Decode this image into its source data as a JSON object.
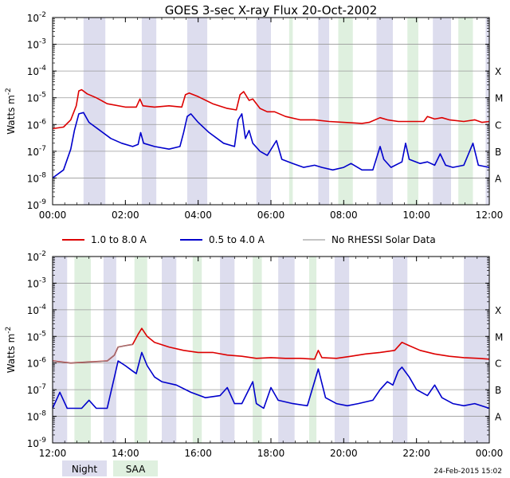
{
  "title": "GOES 3-sec X-ray Flux   20-Oct-2002",
  "footer_date": "24-Feb-2015 15:02",
  "key": {
    "night": "Night",
    "saa": "SAA"
  },
  "colors": {
    "long_channel": "#dd0000",
    "short_channel": "#0000cc",
    "no_rhessi": "#888888",
    "night_band": "#ddddee",
    "saa_band": "#dff0df"
  },
  "chart_data": [
    {
      "type": "line",
      "panel": "top",
      "ylabel": "Watts m",
      "ylabel_superscript": "-2",
      "y_scale": "log",
      "ylim": [
        1e-09,
        0.01
      ],
      "y_ticks": [
        {
          "base": "10",
          "exp": "-9"
        },
        {
          "base": "10",
          "exp": "-8"
        },
        {
          "base": "10",
          "exp": "-7"
        },
        {
          "base": "10",
          "exp": "-6"
        },
        {
          "base": "10",
          "exp": "-5"
        },
        {
          "base": "10",
          "exp": "-4"
        },
        {
          "base": "10",
          "exp": "-3"
        },
        {
          "base": "10",
          "exp": "-2"
        }
      ],
      "flare_classes": [
        {
          "label": "A",
          "flux": 1e-08
        },
        {
          "label": "B",
          "flux": 1e-07
        },
        {
          "label": "C",
          "flux": 1e-06
        },
        {
          "label": "M",
          "flux": 1e-05
        },
        {
          "label": "X",
          "flux": 0.0001
        }
      ],
      "xlim": [
        0,
        12
      ],
      "x_ticks": [
        "00:00",
        "02:00",
        "04:00",
        "06:00",
        "08:00",
        "10:00",
        "12:00"
      ],
      "grid": true,
      "night": [
        [
          0.85,
          1.45
        ],
        [
          2.45,
          2.85
        ],
        [
          3.7,
          4.25
        ],
        [
          5.6,
          6.0
        ],
        [
          7.3,
          7.6
        ],
        [
          8.9,
          9.35
        ],
        [
          10.45,
          10.95
        ],
        [
          11.9,
          12.0
        ]
      ],
      "saa": [
        [
          6.5,
          6.6
        ],
        [
          7.85,
          8.25
        ],
        [
          9.75,
          10.05
        ],
        [
          11.15,
          11.55
        ]
      ],
      "series": [
        {
          "name": "1.0 to 8.0 A",
          "channel": "long",
          "points": [
            [
              0,
              7e-07
            ],
            [
              0.3,
              8e-07
            ],
            [
              0.5,
              1.5e-06
            ],
            [
              0.65,
              5e-06
            ],
            [
              0.72,
              1.8e-05
            ],
            [
              0.8,
              2e-05
            ],
            [
              0.95,
              1.4e-05
            ],
            [
              1.2,
              1e-05
            ],
            [
              1.5,
              6e-06
            ],
            [
              2.0,
              4.5e-06
            ],
            [
              2.3,
              4.5e-06
            ],
            [
              2.4,
              9e-06
            ],
            [
              2.48,
              5e-06
            ],
            [
              2.8,
              4.5e-06
            ],
            [
              3.2,
              5e-06
            ],
            [
              3.55,
              4.5e-06
            ],
            [
              3.65,
              1.3e-05
            ],
            [
              3.75,
              1.5e-05
            ],
            [
              4.0,
              1.1e-05
            ],
            [
              4.4,
              6e-06
            ],
            [
              4.8,
              4e-06
            ],
            [
              5.05,
              3.5e-06
            ],
            [
              5.15,
              1.3e-05
            ],
            [
              5.25,
              1.7e-05
            ],
            [
              5.4,
              8e-06
            ],
            [
              5.5,
              9e-06
            ],
            [
              5.7,
              4e-06
            ],
            [
              5.9,
              3e-06
            ],
            [
              6.1,
              3e-06
            ],
            [
              6.4,
              2e-06
            ],
            [
              6.8,
              1.5e-06
            ],
            [
              7.2,
              1.5e-06
            ],
            [
              7.6,
              1.3e-06
            ],
            [
              8.0,
              1.2e-06
            ],
            [
              8.5,
              1.1e-06
            ],
            [
              8.7,
              1.2e-06
            ],
            [
              9.0,
              1.8e-06
            ],
            [
              9.2,
              1.5e-06
            ],
            [
              9.5,
              1.3e-06
            ],
            [
              9.9,
              1.3e-06
            ],
            [
              10.2,
              1.3e-06
            ],
            [
              10.3,
              2e-06
            ],
            [
              10.5,
              1.6e-06
            ],
            [
              10.7,
              1.8e-06
            ],
            [
              10.9,
              1.5e-06
            ],
            [
              11.3,
              1.3e-06
            ],
            [
              11.6,
              1.5e-06
            ],
            [
              11.8,
              1.2e-06
            ],
            [
              12,
              1.3e-06
            ]
          ]
        },
        {
          "name": "0.5 to 4.0 A",
          "channel": "short",
          "points": [
            [
              0,
              1e-08
            ],
            [
              0.3,
              2e-08
            ],
            [
              0.5,
              1.2e-07
            ],
            [
              0.6,
              6e-07
            ],
            [
              0.72,
              2.5e-06
            ],
            [
              0.85,
              2.8e-06
            ],
            [
              1.0,
              1.2e-06
            ],
            [
              1.3,
              6e-07
            ],
            [
              1.6,
              3e-07
            ],
            [
              1.9,
              2e-07
            ],
            [
              2.2,
              1.5e-07
            ],
            [
              2.35,
              1.8e-07
            ],
            [
              2.42,
              5e-07
            ],
            [
              2.5,
              2e-07
            ],
            [
              2.8,
              1.5e-07
            ],
            [
              3.2,
              1.2e-07
            ],
            [
              3.5,
              1.5e-07
            ],
            [
              3.6,
              5e-07
            ],
            [
              3.7,
              2e-06
            ],
            [
              3.8,
              2.5e-06
            ],
            [
              4.0,
              1.2e-06
            ],
            [
              4.3,
              5e-07
            ],
            [
              4.7,
              2e-07
            ],
            [
              5.0,
              1.5e-07
            ],
            [
              5.1,
              1.5e-06
            ],
            [
              5.2,
              2.5e-06
            ],
            [
              5.3,
              3e-07
            ],
            [
              5.4,
              6e-07
            ],
            [
              5.5,
              2e-07
            ],
            [
              5.7,
              1e-07
            ],
            [
              5.9,
              7e-08
            ],
            [
              6.15,
              2.5e-07
            ],
            [
              6.3,
              5e-08
            ],
            [
              6.6,
              3.5e-08
            ],
            [
              6.9,
              2.5e-08
            ],
            [
              7.2,
              3e-08
            ],
            [
              7.4,
              2.5e-08
            ],
            [
              7.7,
              2e-08
            ],
            [
              8.0,
              2.5e-08
            ],
            [
              8.2,
              3.5e-08
            ],
            [
              8.5,
              2e-08
            ],
            [
              8.8,
              2e-08
            ],
            [
              9.0,
              1.5e-07
            ],
            [
              9.1,
              5e-08
            ],
            [
              9.3,
              2.5e-08
            ],
            [
              9.6,
              4e-08
            ],
            [
              9.7,
              2e-07
            ],
            [
              9.8,
              5e-08
            ],
            [
              10.1,
              3.5e-08
            ],
            [
              10.3,
              4e-08
            ],
            [
              10.5,
              3e-08
            ],
            [
              10.65,
              8e-08
            ],
            [
              10.8,
              3e-08
            ],
            [
              11.0,
              2.5e-08
            ],
            [
              11.3,
              3e-08
            ],
            [
              11.55,
              2e-07
            ],
            [
              11.7,
              3e-08
            ],
            [
              12,
              2.5e-08
            ]
          ]
        }
      ]
    },
    {
      "type": "line",
      "panel": "bottom",
      "ylabel": "Watts m",
      "ylabel_superscript": "-2",
      "y_scale": "log",
      "ylim": [
        1e-09,
        0.01
      ],
      "y_ticks": [
        {
          "base": "10",
          "exp": "-9"
        },
        {
          "base": "10",
          "exp": "-8"
        },
        {
          "base": "10",
          "exp": "-7"
        },
        {
          "base": "10",
          "exp": "-6"
        },
        {
          "base": "10",
          "exp": "-5"
        },
        {
          "base": "10",
          "exp": "-4"
        },
        {
          "base": "10",
          "exp": "-3"
        },
        {
          "base": "10",
          "exp": "-2"
        }
      ],
      "flare_classes": [
        {
          "label": "A",
          "flux": 1e-08
        },
        {
          "label": "B",
          "flux": 1e-07
        },
        {
          "label": "C",
          "flux": 1e-06
        },
        {
          "label": "M",
          "flux": 1e-05
        },
        {
          "label": "X",
          "flux": 0.0001
        }
      ],
      "xlim": [
        12,
        24
      ],
      "x_ticks": [
        "12:00",
        "14:00",
        "16:00",
        "18:00",
        "20:00",
        "22:00",
        "00:00"
      ],
      "grid": true,
      "night": [
        [
          12.0,
          12.4
        ],
        [
          13.4,
          13.75
        ],
        [
          15.0,
          15.4
        ],
        [
          16.6,
          17.0
        ],
        [
          18.2,
          18.65
        ],
        [
          19.75,
          20.15
        ],
        [
          21.35,
          21.75
        ],
        [
          23.3,
          24.0
        ]
      ],
      "saa": [
        [
          12.6,
          13.05
        ],
        [
          14.25,
          14.6
        ],
        [
          15.85,
          16.1
        ],
        [
          17.5,
          17.75
        ],
        [
          19.05,
          19.25
        ]
      ],
      "series": [
        {
          "name": "1.0 to 8.0 A",
          "channel": "long",
          "points": [
            [
              12,
              1.2e-06
            ],
            [
              12.5,
              1e-06
            ],
            [
              13.0,
              1.1e-06
            ],
            [
              13.5,
              1.2e-06
            ],
            [
              13.7,
              2e-06
            ],
            [
              13.8,
              4e-06
            ],
            [
              14.0,
              4.5e-06
            ],
            [
              14.2,
              5e-06
            ],
            [
              14.35,
              1.2e-05
            ],
            [
              14.45,
              2e-05
            ],
            [
              14.6,
              1e-05
            ],
            [
              14.8,
              6e-06
            ],
            [
              15.2,
              4e-06
            ],
            [
              15.6,
              3e-06
            ],
            [
              16.0,
              2.5e-06
            ],
            [
              16.4,
              2.5e-06
            ],
            [
              16.8,
              2e-06
            ],
            [
              17.2,
              1.8e-06
            ],
            [
              17.6,
              1.5e-06
            ],
            [
              18.0,
              1.6e-06
            ],
            [
              18.4,
              1.5e-06
            ],
            [
              18.8,
              1.5e-06
            ],
            [
              19.2,
              1.4e-06
            ],
            [
              19.3,
              3e-06
            ],
            [
              19.4,
              1.6e-06
            ],
            [
              19.8,
              1.5e-06
            ],
            [
              20.2,
              1.8e-06
            ],
            [
              20.6,
              2.2e-06
            ],
            [
              21.0,
              2.5e-06
            ],
            [
              21.4,
              3e-06
            ],
            [
              21.6,
              6e-06
            ],
            [
              21.8,
              4.5e-06
            ],
            [
              22.1,
              3e-06
            ],
            [
              22.5,
              2.2e-06
            ],
            [
              22.9,
              1.8e-06
            ],
            [
              23.3,
              1.6e-06
            ],
            [
              23.7,
              1.5e-06
            ],
            [
              24,
              1.4e-06
            ]
          ]
        },
        {
          "name": "0.5 to 4.0 A",
          "channel": "short",
          "points": [
            [
              12,
              2e-08
            ],
            [
              12.2,
              8e-08
            ],
            [
              12.4,
              2e-08
            ],
            [
              12.8,
              2e-08
            ],
            [
              13.0,
              4e-08
            ],
            [
              13.2,
              2e-08
            ],
            [
              13.5,
              2e-08
            ],
            [
              13.7,
              3e-07
            ],
            [
              13.8,
              1.2e-06
            ],
            [
              14.0,
              8e-07
            ],
            [
              14.2,
              5e-07
            ],
            [
              14.3,
              4e-07
            ],
            [
              14.45,
              2.5e-06
            ],
            [
              14.6,
              8e-07
            ],
            [
              14.8,
              3e-07
            ],
            [
              15.0,
              2e-07
            ],
            [
              15.4,
              1.5e-07
            ],
            [
              15.8,
              8e-08
            ],
            [
              16.2,
              5e-08
            ],
            [
              16.6,
              6e-08
            ],
            [
              16.8,
              1.2e-07
            ],
            [
              17.0,
              3e-08
            ],
            [
              17.2,
              3e-08
            ],
            [
              17.5,
              2e-07
            ],
            [
              17.6,
              3e-08
            ],
            [
              17.8,
              2e-08
            ],
            [
              18.0,
              1.2e-07
            ],
            [
              18.2,
              4e-08
            ],
            [
              18.6,
              3e-08
            ],
            [
              19.0,
              2.5e-08
            ],
            [
              19.3,
              6e-07
            ],
            [
              19.5,
              5e-08
            ],
            [
              19.8,
              3e-08
            ],
            [
              20.1,
              2.5e-08
            ],
            [
              20.4,
              3e-08
            ],
            [
              20.8,
              4e-08
            ],
            [
              21.0,
              1e-07
            ],
            [
              21.2,
              2e-07
            ],
            [
              21.35,
              1.5e-07
            ],
            [
              21.5,
              5e-07
            ],
            [
              21.6,
              7e-07
            ],
            [
              21.8,
              3e-07
            ],
            [
              22.0,
              1e-07
            ],
            [
              22.3,
              6e-08
            ],
            [
              22.5,
              1.5e-07
            ],
            [
              22.7,
              5e-08
            ],
            [
              23.0,
              3e-08
            ],
            [
              23.3,
              2.5e-08
            ],
            [
              23.6,
              3e-08
            ],
            [
              24,
              2e-08
            ]
          ]
        }
      ],
      "no_rhessi_points": [
        [
          12,
          1.2e-06
        ],
        [
          12.5,
          1e-06
        ],
        [
          13.0,
          1.1e-06
        ],
        [
          13.5,
          1.2e-06
        ],
        [
          13.7,
          2e-06
        ],
        [
          13.8,
          4e-06
        ],
        [
          14.2,
          5e-06
        ]
      ]
    }
  ],
  "legend": [
    {
      "label": "1.0 to 8.0 A",
      "channel": "long"
    },
    {
      "label": "0.5 to 4.0 A",
      "channel": "short"
    },
    {
      "label": "No RHESSI Solar Data",
      "channel": "none"
    }
  ]
}
